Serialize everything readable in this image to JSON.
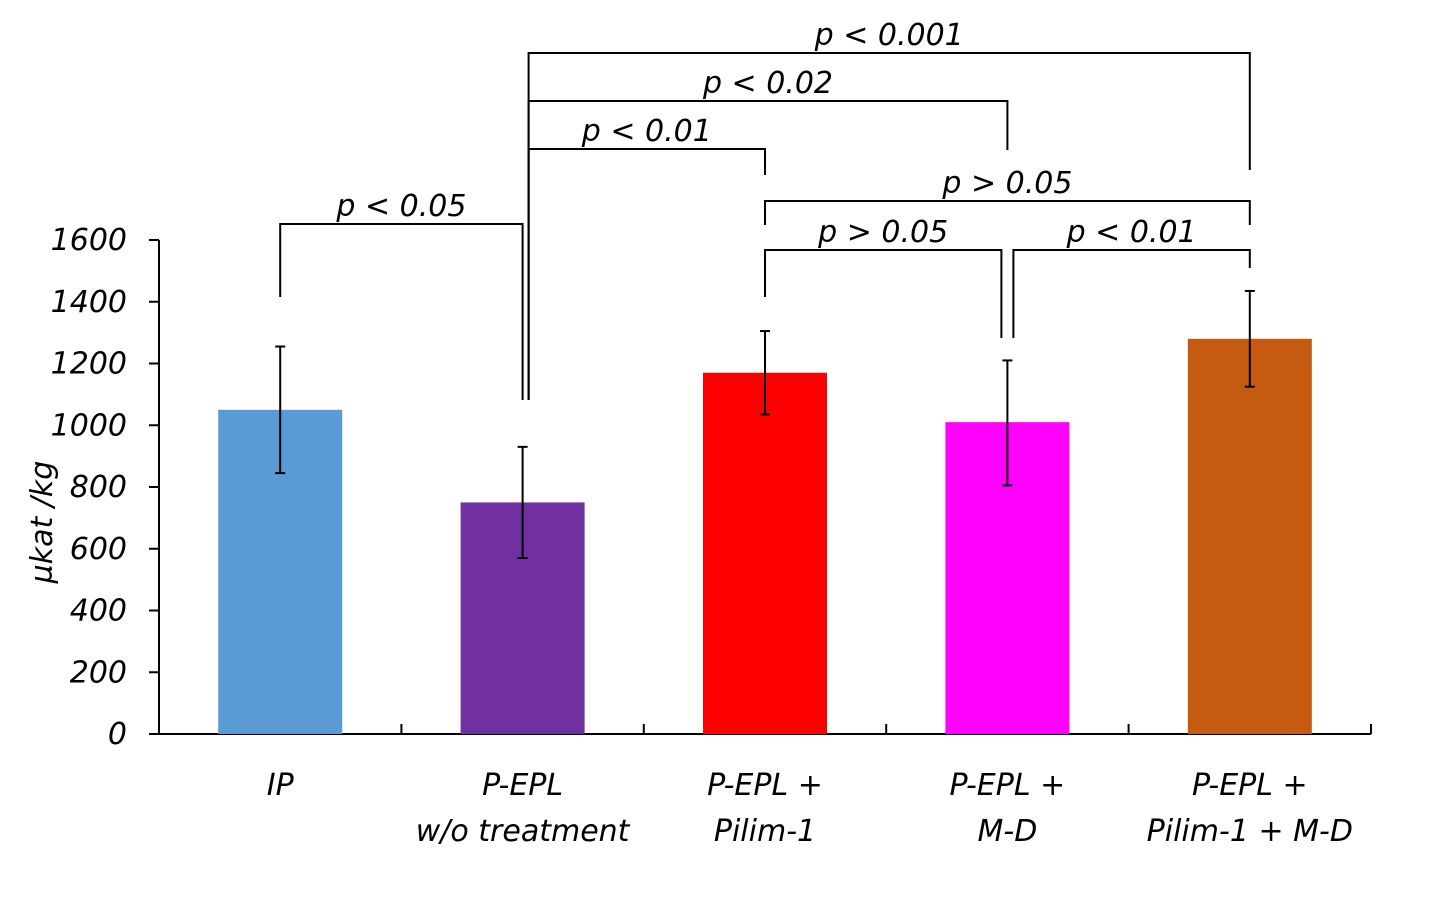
{
  "chart_data": {
    "type": "bar",
    "title": "",
    "xlabel": "",
    "ylabel": "µkat /kg",
    "ylim": [
      0,
      1600
    ],
    "yticks": [
      "0",
      "200",
      "400",
      "600",
      "800",
      "1000",
      "1200",
      "1400",
      "1600"
    ],
    "grid": false,
    "categories": [
      {
        "line1": "IP",
        "line2": ""
      },
      {
        "line1": "P-EPL",
        "line2": "w/o treatment"
      },
      {
        "line1": "P-EPL +",
        "line2": "Pilim-1"
      },
      {
        "line1": "P-EPL +",
        "line2": "M-D"
      },
      {
        "line1": "P-EPL +",
        "line2": "Pilim-1 + M-D"
      }
    ],
    "values": [
      1050,
      750,
      1170,
      1010,
      1280
    ],
    "error_low": [
      845,
      570,
      1035,
      805,
      1125
    ],
    "error_high": [
      1255,
      930,
      1305,
      1210,
      1435
    ],
    "colors": [
      "#5b9bd5",
      "#7030a0",
      "#ff0000",
      "#ff00ff",
      "#c55a11"
    ],
    "comparisons": [
      {
        "from": 0,
        "to": 1,
        "label": "p < 0.05"
      },
      {
        "from": 1,
        "to": 2,
        "label": "p < 0.01"
      },
      {
        "from": 1,
        "to": 3,
        "label": "p < 0.02"
      },
      {
        "from": 1,
        "to": 4,
        "label": "p < 0.001"
      },
      {
        "from": 2,
        "to": 4,
        "label": "p > 0.05"
      },
      {
        "from": 2,
        "to": 3,
        "label": "p > 0.05"
      },
      {
        "from": 3,
        "to": 4,
        "label": "p < 0.01"
      }
    ]
  }
}
